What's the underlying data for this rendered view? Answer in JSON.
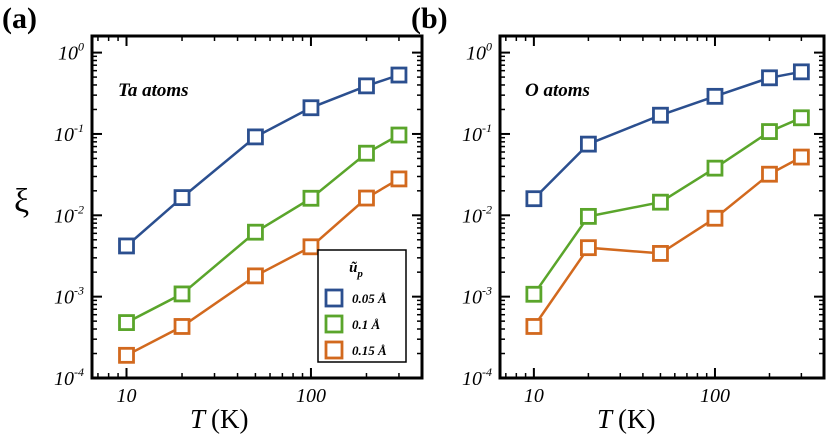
{
  "chart_data": [
    {
      "type": "line",
      "panel_label": "(a)",
      "annotation": "Ta atoms",
      "xlabel_italic": "T",
      "xlabel_unit": "(K)",
      "ylabel": "ξ",
      "xscale": "log",
      "yscale": "log",
      "xlim": [
        6.5,
        400
      ],
      "ylim": [
        0.0001,
        1.6
      ],
      "xticks": [
        {
          "v": 10,
          "label": "10"
        },
        {
          "v": 100,
          "label": "100"
        }
      ],
      "yticks": [
        {
          "v": 0.0001,
          "base": "10",
          "exp": "-4"
        },
        {
          "v": 0.001,
          "base": "10",
          "exp": "-3"
        },
        {
          "v": 0.01,
          "base": "10",
          "exp": "-2"
        },
        {
          "v": 0.1,
          "base": "10",
          "exp": "-1"
        },
        {
          "v": 1,
          "base": "10",
          "exp": "0"
        }
      ],
      "x": [
        10,
        20,
        50,
        100,
        200,
        300
      ],
      "series": [
        {
          "name": "0.05 Å",
          "color": "#2b4f8f",
          "values": [
            0.0042,
            0.0165,
            0.092,
            0.21,
            0.39,
            0.53
          ]
        },
        {
          "name": "0.1 Å",
          "color": "#5aa52b",
          "values": [
            0.00048,
            0.00108,
            0.0062,
            0.0162,
            0.058,
            0.097
          ]
        },
        {
          "name": "0.15 Å",
          "color": "#d2691e",
          "values": [
            0.00019,
            0.00043,
            0.0018,
            0.0041,
            0.0163,
            0.028
          ]
        }
      ],
      "legend": {
        "title_base": "ũ",
        "title_sub": "p",
        "position": "bottom-right",
        "entries": [
          "0.05 Å",
          "0.1 Å",
          "0.15 Å"
        ]
      },
      "grid": false
    },
    {
      "type": "line",
      "panel_label": "(b)",
      "annotation": "O atoms",
      "xlabel_italic": "T",
      "xlabel_unit": "(K)",
      "xscale": "log",
      "yscale": "log",
      "xlim": [
        6.5,
        400
      ],
      "ylim": [
        0.0001,
        1.6
      ],
      "xticks": [
        {
          "v": 10,
          "label": "10"
        },
        {
          "v": 100,
          "label": "100"
        }
      ],
      "yticks": [
        {
          "v": 0.0001,
          "base": "10",
          "exp": "-4"
        },
        {
          "v": 0.001,
          "base": "10",
          "exp": "-3"
        },
        {
          "v": 0.01,
          "base": "10",
          "exp": "-2"
        },
        {
          "v": 0.1,
          "base": "10",
          "exp": "-1"
        },
        {
          "v": 1,
          "base": "10",
          "exp": "0"
        }
      ],
      "x": [
        10,
        20,
        50,
        100,
        200,
        300
      ],
      "series": [
        {
          "name": "0.05 Å",
          "color": "#2b4f8f",
          "values": [
            0.016,
            0.075,
            0.17,
            0.29,
            0.49,
            0.58
          ]
        },
        {
          "name": "0.1 Å",
          "color": "#5aa52b",
          "values": [
            0.00107,
            0.0097,
            0.0145,
            0.038,
            0.107,
            0.158
          ]
        },
        {
          "name": "0.15 Å",
          "color": "#d2691e",
          "values": [
            0.00043,
            0.004,
            0.0034,
            0.0092,
            0.032,
            0.052
          ]
        }
      ],
      "grid": false
    }
  ]
}
